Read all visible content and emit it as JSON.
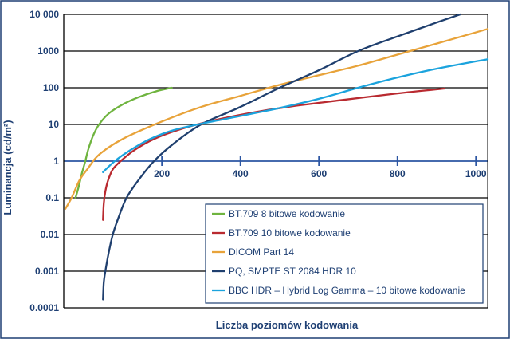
{
  "chart_data": {
    "type": "line",
    "xlabel": "Liczba poziomów kodowania",
    "ylabel": "Luminancja (cd/m²)",
    "xlim": [
      -50,
      1030
    ],
    "ylim_log10": [
      -4,
      4
    ],
    "y_scale": "log",
    "grid": true,
    "legend_position": "bottom-right",
    "x_ticks": [
      {
        "value": 200,
        "label": "200"
      },
      {
        "value": 400,
        "label": "400"
      },
      {
        "value": 600,
        "label": "600"
      },
      {
        "value": 800,
        "label": "800"
      },
      {
        "value": 1000,
        "label": "1000"
      }
    ],
    "y_ticks": [
      {
        "value": 10000,
        "label": "10 000"
      },
      {
        "value": 1000,
        "label": "1000"
      },
      {
        "value": 100,
        "label": "100"
      },
      {
        "value": 10,
        "label": "10"
      },
      {
        "value": 1,
        "label": "1"
      },
      {
        "value": 0.1,
        "label": "0.1"
      },
      {
        "value": 0.01,
        "label": "0.01"
      },
      {
        "value": 0.001,
        "label": "0.001"
      },
      {
        "value": 0.0001,
        "label": "0.0001"
      }
    ],
    "series": [
      {
        "name": "BT.709 8 bitowe kodowanie",
        "color": "#6fb43f",
        "points": [
          [
            -20,
            0.1
          ],
          [
            -12,
            0.2
          ],
          [
            -3,
            0.5
          ],
          [
            5,
            1
          ],
          [
            12,
            2
          ],
          [
            25,
            5
          ],
          [
            40,
            10
          ],
          [
            65,
            20
          ],
          [
            100,
            35
          ],
          [
            140,
            55
          ],
          [
            185,
            80
          ],
          [
            225,
            100
          ]
        ]
      },
      {
        "name": "BT.709 10 bitowe kodowanie",
        "color": "#b92a30",
        "points": [
          [
            50,
            0.025
          ],
          [
            52,
            0.07
          ],
          [
            56,
            0.15
          ],
          [
            63,
            0.3
          ],
          [
            75,
            0.6
          ],
          [
            95,
            1
          ],
          [
            130,
            2
          ],
          [
            180,
            4
          ],
          [
            240,
            7
          ],
          [
            320,
            12
          ],
          [
            420,
            20
          ],
          [
            520,
            30
          ],
          [
            650,
            45
          ],
          [
            800,
            70
          ],
          [
            920,
            95
          ]
        ]
      },
      {
        "name": "DICOM Part 14",
        "color": "#e8a33a",
        "points": [
          [
            -46,
            0.05
          ],
          [
            -30,
            0.1
          ],
          [
            -10,
            0.3
          ],
          [
            10,
            0.6
          ],
          [
            40,
            1.5
          ],
          [
            100,
            4
          ],
          [
            200,
            12
          ],
          [
            300,
            30
          ],
          [
            400,
            60
          ],
          [
            500,
            120
          ],
          [
            600,
            220
          ],
          [
            700,
            400
          ],
          [
            800,
            800
          ],
          [
            900,
            1600
          ],
          [
            1030,
            4000
          ]
        ]
      },
      {
        "name": "PQ, SMPTE ST 2084 HDR 10",
        "color": "#1f3f6e",
        "points": [
          [
            50,
            0.00017
          ],
          [
            52,
            0.0005
          ],
          [
            56,
            0.001
          ],
          [
            64,
            0.003
          ],
          [
            75,
            0.01
          ],
          [
            90,
            0.03
          ],
          [
            110,
            0.1
          ],
          [
            140,
            0.3
          ],
          [
            180,
            1
          ],
          [
            230,
            3
          ],
          [
            300,
            10
          ],
          [
            400,
            30
          ],
          [
            500,
            100
          ],
          [
            600,
            300
          ],
          [
            700,
            1000
          ],
          [
            800,
            2500
          ],
          [
            900,
            6000
          ],
          [
            960,
            10000
          ]
        ]
      },
      {
        "name": "BBC HDR – Hybrid Log Gamma – 10 bitowe kodowanie",
        "color": "#1ba3dd",
        "points": [
          [
            50,
            0.5
          ],
          [
            80,
            1
          ],
          [
            120,
            2
          ],
          [
            170,
            4
          ],
          [
            230,
            7
          ],
          [
            310,
            11
          ],
          [
            400,
            17
          ],
          [
            500,
            28
          ],
          [
            600,
            50
          ],
          [
            700,
            100
          ],
          [
            800,
            190
          ],
          [
            900,
            330
          ],
          [
            1030,
            600
          ]
        ]
      }
    ]
  }
}
